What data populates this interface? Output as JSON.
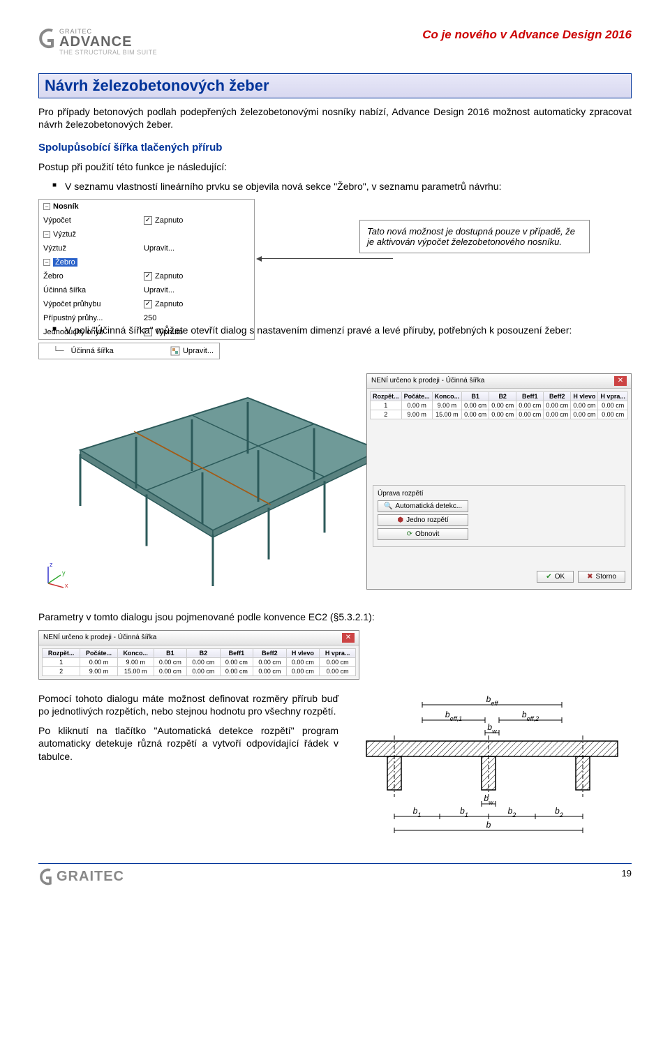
{
  "header": {
    "brand_top": "GRAITEC",
    "brand_main": "ADVANCE",
    "brand_sub": "THE STRUCTURAL BIM SUITE",
    "doc_title": "Co je nového v Advance Design 2016"
  },
  "section_title": "Návrh železobetonových žeber",
  "intro_para": "Pro případy betonových podlah podepřených železobetonovými nosníky nabízí, Advance Design 2016 možnost automaticky zpracovat návrh železobetonových žeber.",
  "subheading": "Spolupůsobící šířka tlačených přírub",
  "postup_label": "Postup při použití této funkce je následující:",
  "bullets": [
    "V seznamu vlastností lineárního prvku se objevila nová sekce \"Žebro\", v seznamu parametrů návrhu:",
    "V poli \"Účinná šířka\" můžete otevřít dialog s nastavením dimenzí pravé a levé příruby, potřebných k posouzení žeber:"
  ],
  "callout_text": "Tato nová možnost je dostupná pouze v případě, že je aktivován výpočet železobetonového nosníku.",
  "props": {
    "group": "Nosník",
    "rows": [
      {
        "label": "Výpočet",
        "val": "Zapnuto",
        "indent": 1,
        "checked": true
      },
      {
        "label": "Výztuž",
        "val": "",
        "indent": 1,
        "expand": true
      },
      {
        "label": "Výztuž",
        "val": "Upravit...",
        "indent": 2
      },
      {
        "label": "Žebro",
        "val": "",
        "indent": 1,
        "expand": true,
        "selected": true
      },
      {
        "label": "Žebro",
        "val": "Zapnuto",
        "indent": 2,
        "checked": true
      },
      {
        "label": "Účinná šířka",
        "val": "Upravit...",
        "indent": 2
      },
      {
        "label": "Výpočet průhybu",
        "val": "Zapnuto",
        "indent": 1,
        "checked": true
      },
      {
        "label": "Přípustný průhy...",
        "val": "250",
        "indent": 1
      },
      {
        "label": "Jednoduchý ohyb",
        "val": "Vypnuto",
        "indent": 1,
        "checked": false
      }
    ]
  },
  "small_screenshot": {
    "label": "Účinná šířka",
    "action": "Upravit..."
  },
  "dialog": {
    "title_text": "NENÍ určeno k prodeji - Účinná šířka",
    "cols": [
      "Rozpět...",
      "Počáte...",
      "Konco...",
      "B1",
      "B2",
      "Beff1",
      "Beff2",
      "H vlevo",
      "H vpra..."
    ],
    "rows": [
      [
        "1",
        "0.00 m",
        "9.00 m",
        "0.00 cm",
        "0.00 cm",
        "0.00 cm",
        "0.00 cm",
        "0.00 cm",
        "0.00 cm"
      ],
      [
        "2",
        "9.00 m",
        "15.00 m",
        "0.00 cm",
        "0.00 cm",
        "0.00 cm",
        "0.00 cm",
        "0.00 cm",
        "0.00 cm"
      ]
    ],
    "group_label": "Úprava rozpětí",
    "btn_auto": "Automatická detekc...",
    "btn_one": "Jedno rozpětí",
    "btn_refresh": "Obnovit",
    "btn_ok": "OK",
    "btn_cancel": "Storno"
  },
  "param_line": "Parametry v tomto dialogu jsou pojmenované podle konvence EC2 (§5.3.2.1):",
  "bottom_para1": "Pomocí tohoto dialogu máte možnost definovat rozměry přírub buď po jednotlivých rozpětích, nebo stejnou hodnotu pro všechny rozpětí.",
  "bottom_para2": "Po kliknutí na tlačítko \"Automatická detekce rozpětí\" program automaticky detekuje různá rozpětí a vytvoří odpovídající řádek v tabulce.",
  "beff_diagram": {
    "labels": {
      "beff": "b",
      "beff1": "b",
      "beff2": "b",
      "bw": "b",
      "b1": "b",
      "b2": "b",
      "b": "b",
      "eff": "eff",
      "eff1": "eff,1",
      "eff2": "eff,2",
      "w": "w",
      "one": "1",
      "two": "2"
    },
    "stroke": "#000"
  },
  "model3d": {
    "slab_fill": "#6f9a98",
    "slab_stroke": "#2c5a5a",
    "beam_fill": "#e8963a",
    "column_fill": "#2c5a5a",
    "axes": {
      "x": "x",
      "y": "y",
      "z": "z"
    },
    "axes_colors": {
      "x": "#cc3333",
      "y": "#33aa33",
      "z": "#3333cc"
    }
  },
  "footer": {
    "brand": "GRAITEC",
    "page": "19"
  }
}
